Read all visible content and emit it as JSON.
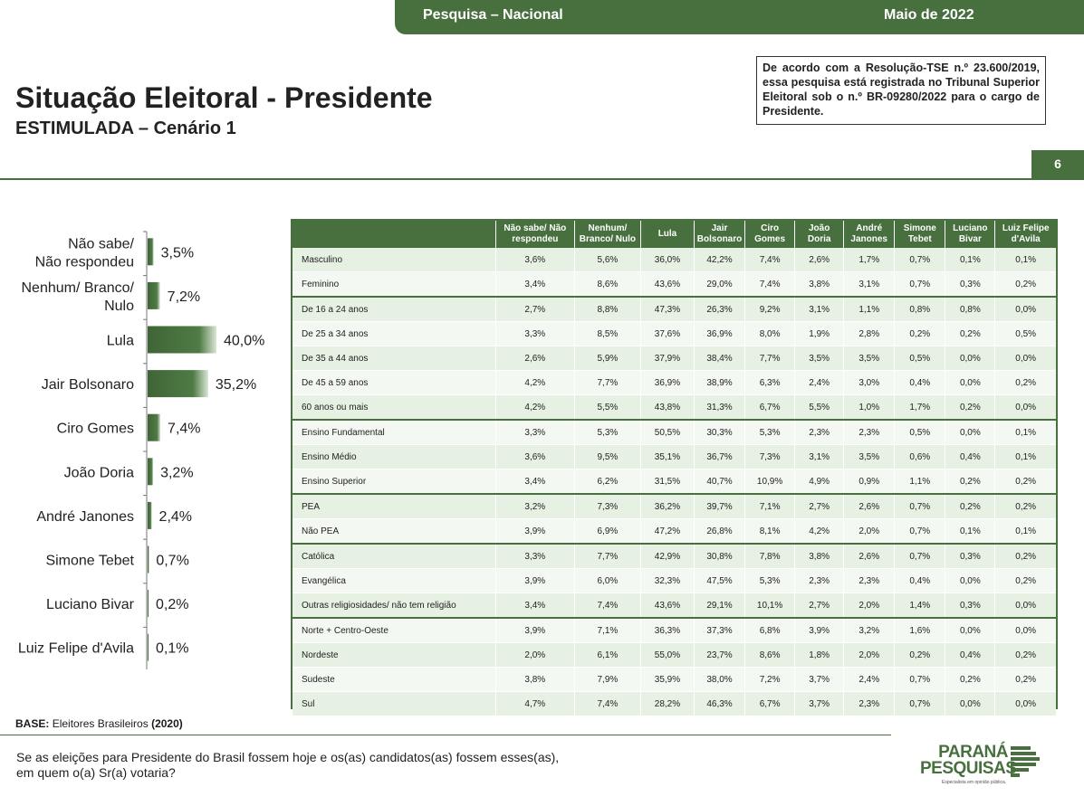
{
  "header": {
    "left": "Pesquisa – Nacional",
    "right": "Maio de 2022"
  },
  "title": "Situação Eleitoral - Presidente",
  "subtitle": "ESTIMULADA – Cenário 1",
  "tse_note": "De acordo com a Resolução-TSE n.º 23.600/2019, essa pesquisa está registrada no Tribunal Superior Eleitoral sob o n.º BR-09280/2022 para o cargo de Presidente.",
  "page_number": "6",
  "colors": {
    "accent": "#47703e",
    "row_a": "#e6f0e3",
    "row_b": "#f4f8f2"
  },
  "chart_data": [
    {
      "type": "bar",
      "orientation": "horizontal",
      "categories": [
        "Não sabe/ Não respondeu",
        "Nenhum/ Branco/ Nulo",
        "Lula",
        "Jair Bolsonaro",
        "Ciro Gomes",
        "João Doria",
        "André Janones",
        "Simone Tebet",
        "Luciano Bivar",
        "Luiz Felipe d'Avila"
      ],
      "category_lines": [
        [
          "Não sabe/",
          "Não respondeu"
        ],
        [
          "Nenhum/ Branco/",
          "Nulo"
        ],
        [
          "Lula"
        ],
        [
          "Jair Bolsonaro"
        ],
        [
          "Ciro Gomes"
        ],
        [
          "João Doria"
        ],
        [
          "André Janones"
        ],
        [
          "Simone Tebet"
        ],
        [
          "Luciano Bivar"
        ],
        [
          "Luiz Felipe d'Avila"
        ]
      ],
      "values": [
        3.5,
        7.2,
        40.0,
        35.2,
        7.4,
        3.2,
        2.4,
        0.7,
        0.2,
        0.1
      ],
      "value_labels": [
        "3,5%",
        "7,2%",
        "40,0%",
        "35,2%",
        "7,4%",
        "3,2%",
        "2,4%",
        "0,7%",
        "0,2%",
        "0,1%"
      ],
      "unit": "%",
      "xlim": [
        0,
        40
      ],
      "grid": false,
      "legend": "none"
    },
    {
      "type": "table",
      "columns": [
        "",
        "Não sabe/ Não respondeu",
        "Nenhum/ Branco/ Nulo",
        "Lula",
        "Jair Bolsonaro",
        "Ciro Gomes",
        "João Doria",
        "André Janones",
        "Simone Tebet",
        "Luciano Bivar",
        "Luiz Felipe d'Avila"
      ],
      "groups": [
        {
          "rows": [
            {
              "label": "Masculino",
              "values": [
                "3,6%",
                "5,6%",
                "36,0%",
                "42,2%",
                "7,4%",
                "2,6%",
                "1,7%",
                "0,7%",
                "0,1%",
                "0,1%"
              ]
            },
            {
              "label": "Feminino",
              "values": [
                "3,4%",
                "8,6%",
                "43,6%",
                "29,0%",
                "7,4%",
                "3,8%",
                "3,1%",
                "0,7%",
                "0,3%",
                "0,2%"
              ]
            }
          ]
        },
        {
          "rows": [
            {
              "label": "De 16 a 24 anos",
              "values": [
                "2,7%",
                "8,8%",
                "47,3%",
                "26,3%",
                "9,2%",
                "3,1%",
                "1,1%",
                "0,8%",
                "0,8%",
                "0,0%"
              ]
            },
            {
              "label": "De 25 a 34 anos",
              "values": [
                "3,3%",
                "8,5%",
                "37,6%",
                "36,9%",
                "8,0%",
                "1,9%",
                "2,8%",
                "0,2%",
                "0,2%",
                "0,5%"
              ]
            },
            {
              "label": "De 35 a 44 anos",
              "values": [
                "2,6%",
                "5,9%",
                "37,9%",
                "38,4%",
                "7,7%",
                "3,5%",
                "3,5%",
                "0,5%",
                "0,0%",
                "0,0%"
              ]
            },
            {
              "label": "De 45 a 59 anos",
              "values": [
                "4,2%",
                "7,7%",
                "36,9%",
                "38,9%",
                "6,3%",
                "2,4%",
                "3,0%",
                "0,4%",
                "0,0%",
                "0,2%"
              ]
            },
            {
              "label": "60 anos ou mais",
              "values": [
                "4,2%",
                "5,5%",
                "43,8%",
                "31,3%",
                "6,7%",
                "5,5%",
                "1,0%",
                "1,7%",
                "0,2%",
                "0,0%"
              ]
            }
          ]
        },
        {
          "rows": [
            {
              "label": "Ensino Fundamental",
              "values": [
                "3,3%",
                "5,3%",
                "50,5%",
                "30,3%",
                "5,3%",
                "2,3%",
                "2,3%",
                "0,5%",
                "0,0%",
                "0,1%"
              ]
            },
            {
              "label": "Ensino Médio",
              "values": [
                "3,6%",
                "9,5%",
                "35,1%",
                "36,7%",
                "7,3%",
                "3,1%",
                "3,5%",
                "0,6%",
                "0,4%",
                "0,1%"
              ]
            },
            {
              "label": "Ensino Superior",
              "values": [
                "3,4%",
                "6,2%",
                "31,5%",
                "40,7%",
                "10,9%",
                "4,9%",
                "0,9%",
                "1,1%",
                "0,2%",
                "0,2%"
              ]
            }
          ]
        },
        {
          "rows": [
            {
              "label": "PEA",
              "values": [
                "3,2%",
                "7,3%",
                "36,2%",
                "39,7%",
                "7,1%",
                "2,7%",
                "2,6%",
                "0,7%",
                "0,2%",
                "0,2%"
              ]
            },
            {
              "label": "Não PEA",
              "values": [
                "3,9%",
                "6,9%",
                "47,2%",
                "26,8%",
                "8,1%",
                "4,2%",
                "2,0%",
                "0,7%",
                "0,1%",
                "0,1%"
              ]
            }
          ]
        },
        {
          "rows": [
            {
              "label": "Católica",
              "values": [
                "3,3%",
                "7,7%",
                "42,9%",
                "30,8%",
                "7,8%",
                "3,8%",
                "2,6%",
                "0,7%",
                "0,3%",
                "0,2%"
              ]
            },
            {
              "label": "Evangélica",
              "values": [
                "3,9%",
                "6,0%",
                "32,3%",
                "47,5%",
                "5,3%",
                "2,3%",
                "2,3%",
                "0,4%",
                "0,0%",
                "0,2%"
              ]
            },
            {
              "label": "Outras religiosidades/ não tem religião",
              "values": [
                "3,4%",
                "7,4%",
                "43,6%",
                "29,1%",
                "10,1%",
                "2,7%",
                "2,0%",
                "1,4%",
                "0,3%",
                "0,0%"
              ]
            }
          ]
        },
        {
          "rows": [
            {
              "label": "Norte + Centro-Oeste",
              "values": [
                "3,9%",
                "7,1%",
                "36,3%",
                "37,3%",
                "6,8%",
                "3,9%",
                "3,2%",
                "1,6%",
                "0,0%",
                "0,0%"
              ]
            },
            {
              "label": "Nordeste",
              "values": [
                "2,0%",
                "6,1%",
                "55,0%",
                "23,7%",
                "8,6%",
                "1,8%",
                "2,0%",
                "0,2%",
                "0,4%",
                "0,2%"
              ]
            },
            {
              "label": "Sudeste",
              "values": [
                "3,8%",
                "7,9%",
                "35,9%",
                "38,0%",
                "7,2%",
                "3,7%",
                "2,4%",
                "0,7%",
                "0,2%",
                "0,2%"
              ]
            },
            {
              "label": "Sul",
              "values": [
                "4,7%",
                "7,4%",
                "28,2%",
                "46,3%",
                "6,7%",
                "3,7%",
                "2,3%",
                "0,7%",
                "0,0%",
                "0,0%"
              ]
            }
          ]
        }
      ]
    }
  ],
  "base": {
    "label": "BASE:",
    "text": "Eleitores Brasileiros",
    "n": "(2020)"
  },
  "question_lines": [
    "Se as eleições para Presidente do Brasil fossem hoje e os(as) candidatos(as) fossem esses(as),",
    "em quem o(a) Sr(a) votaria?"
  ],
  "logo": {
    "line1": "PARANÁ",
    "line2": "PESQUISAS",
    "tagline": "Especialista em opinião pública."
  }
}
